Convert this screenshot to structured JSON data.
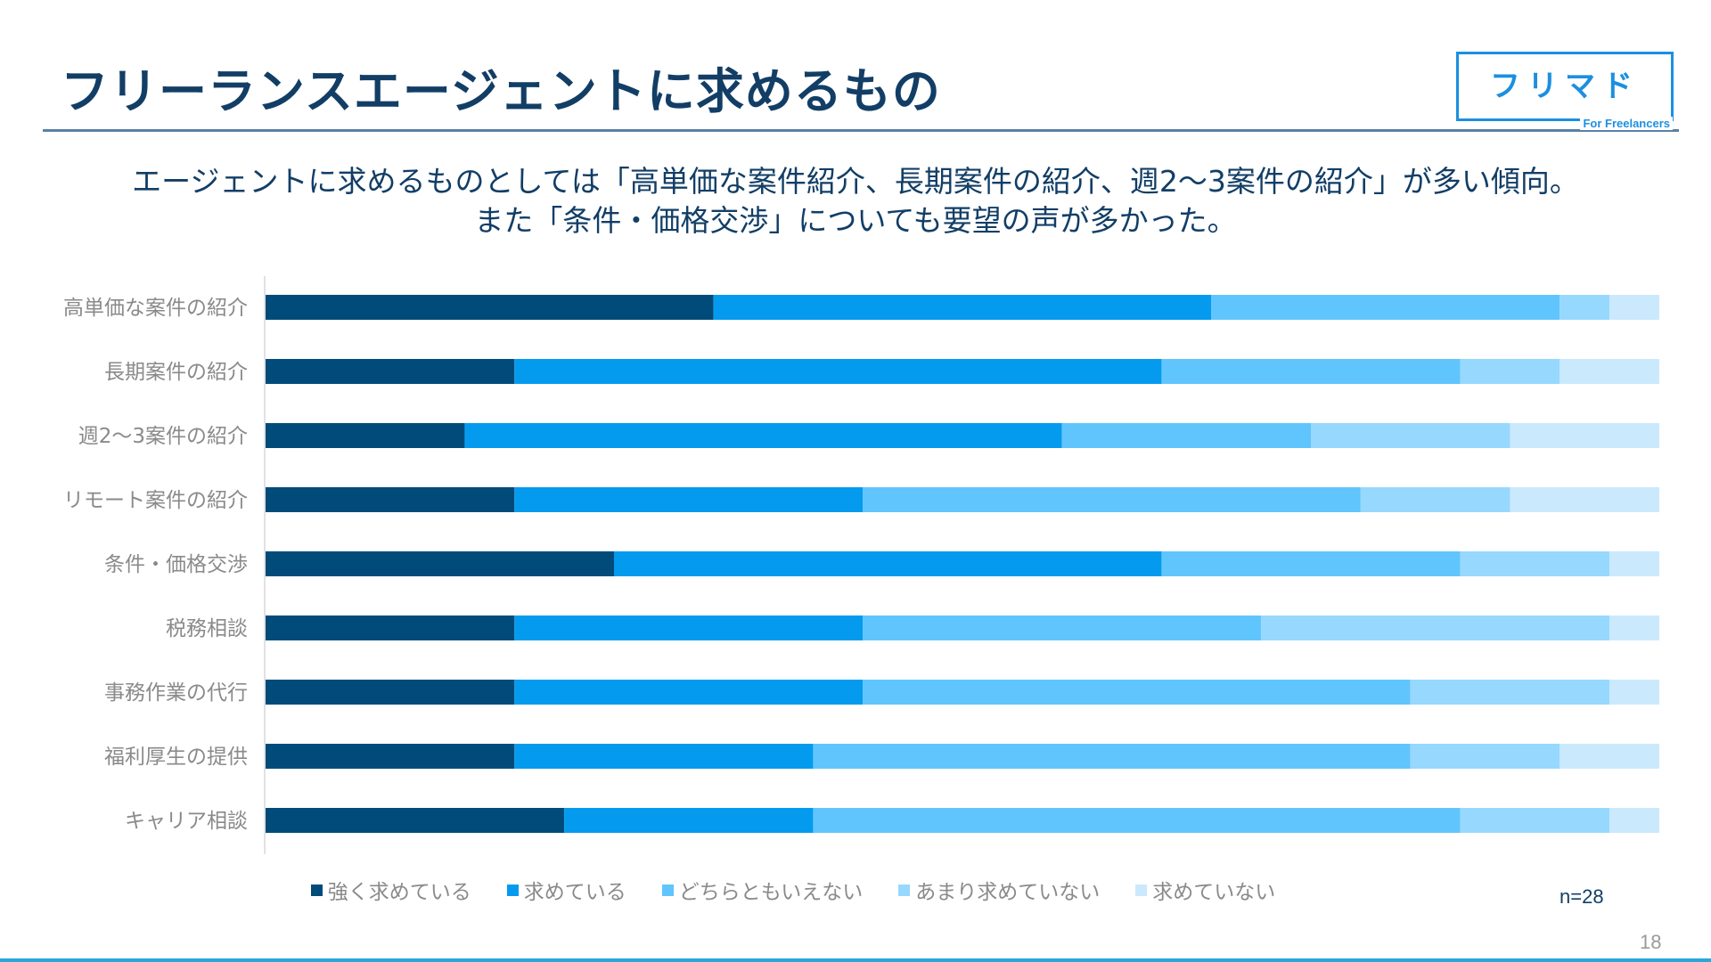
{
  "page": {
    "title": "フリーランスエージェントに求めるもの",
    "subtitle_line1": "エージェントに求めるものとしては「高単価な案件紹介、長期案件の紹介、週2〜3案件の紹介」が多い傾向。",
    "subtitle_line2": "また「条件・価格交渉」についても要望の声が多かった。",
    "logo_main": "フリマド",
    "logo_sub": "For Freelancers",
    "sample_size": "n=28",
    "page_number": "18",
    "colors": {
      "title": "#123e66",
      "logo": "#1c8fe0"
    }
  },
  "chart_data": {
    "type": "bar",
    "orientation": "horizontal",
    "stacked": true,
    "unit": "respondents",
    "total": 28,
    "xlim": [
      0,
      28
    ],
    "categories": [
      "高単価な案件の紹介",
      "長期案件の紹介",
      "週2〜3案件の紹介",
      "リモート案件の紹介",
      "条件・価格交渉",
      "税務相談",
      "事務作業の代行",
      "福利厚生の提供",
      "キャリア相談"
    ],
    "series": [
      {
        "name": "強く求めている",
        "color": "#004b7a",
        "values": [
          9,
          5,
          4,
          5,
          7,
          5,
          5,
          5,
          6
        ]
      },
      {
        "name": "求めている",
        "color": "#049bef",
        "values": [
          10,
          13,
          12,
          7,
          11,
          7,
          7,
          6,
          5
        ]
      },
      {
        "name": "どちらともいえない",
        "color": "#61c5fd",
        "values": [
          7,
          6,
          5,
          10,
          6,
          8,
          11,
          12,
          13
        ]
      },
      {
        "name": "あまり求めていない",
        "color": "#97d8fe",
        "values": [
          1,
          2,
          4,
          3,
          3,
          7,
          4,
          3,
          3
        ]
      },
      {
        "name": "求めていない",
        "color": "#cae9fd",
        "values": [
          1,
          2,
          3,
          3,
          1,
          1,
          1,
          2,
          1
        ]
      }
    ],
    "legend_position": "bottom",
    "grid": false
  }
}
